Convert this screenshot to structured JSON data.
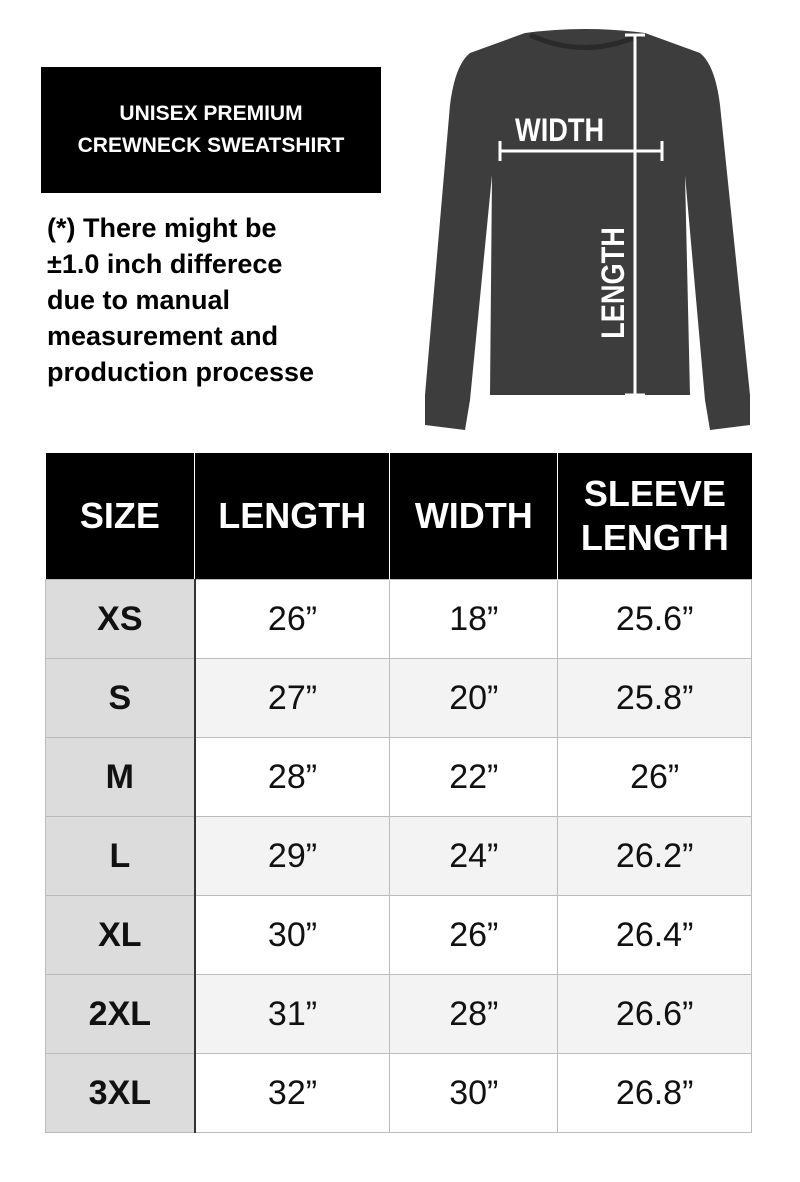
{
  "title": {
    "line1": "UNISEX PREMIUM",
    "line2": "CREWNECK SWEATSHIRT"
  },
  "note": {
    "lines": [
      "(*) There might be",
      "±1.0 inch differece",
      "due to manual",
      "measurement and",
      "production processe"
    ]
  },
  "diagram": {
    "width_label": "WIDTH",
    "length_label": "LENGTH",
    "shirt_color": "#3d3d3d"
  },
  "table": {
    "headers": [
      "SIZE",
      "LENGTH",
      "WIDTH",
      "SLEEVE LENGTH"
    ],
    "rows": [
      [
        "XS",
        "26”",
        "18”",
        "25.6”"
      ],
      [
        "S",
        "27”",
        "20”",
        "25.8”"
      ],
      [
        "M",
        "28”",
        "22”",
        "26”"
      ],
      [
        "L",
        "29”",
        "24”",
        "26.2”"
      ],
      [
        "XL",
        "30”",
        "26”",
        "26.4”"
      ],
      [
        "2XL",
        "31”",
        "28”",
        "26.6”"
      ],
      [
        "3XL",
        "32”",
        "30”",
        "26.8”"
      ]
    ]
  }
}
